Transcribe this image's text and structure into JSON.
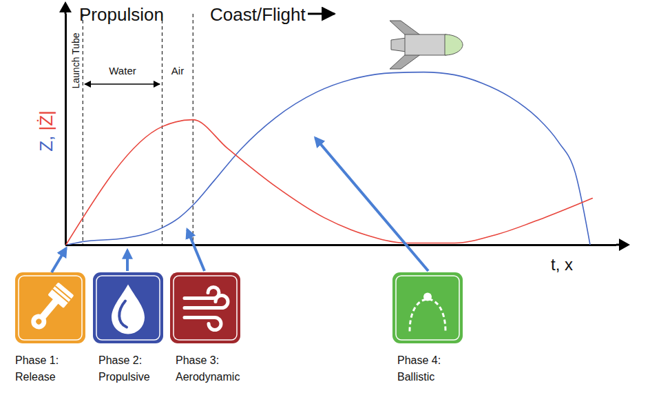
{
  "chart_data": {
    "type": "line",
    "annotations": {
      "propulsion": "Propulsion",
      "coast": "Coast/Flight",
      "launch_tube": "Launch Tube",
      "water": "Water",
      "air": "Air"
    },
    "xlabel": "t, x",
    "ylabel": "Z, |Ż|",
    "xlim": [
      0,
      100
    ],
    "ylim": [
      0,
      100
    ],
    "tick_labels": false,
    "phase_boundaries": [
      3.1,
      17.5,
      23.1
    ],
    "series": [
      {
        "name": "Z",
        "color": "#4466c4",
        "x": [
          0,
          3.1,
          10.6,
          17.5,
          20.6,
          23.1,
          26.9,
          31.9,
          38.1,
          45.6,
          53.1,
          59.4,
          65,
          70.6,
          75.6,
          80.6,
          85.6,
          89.4,
          92.5,
          95.2
        ],
        "values": [
          0,
          1.5,
          3,
          7.5,
          11.9,
          17.3,
          27.8,
          41.8,
          55.2,
          66.3,
          72.5,
          74.6,
          74.9,
          73.7,
          70.1,
          64.2,
          55.2,
          44.8,
          31.3,
          0
        ]
      },
      {
        "name": "|Ż|",
        "color": "#e8453c",
        "x": [
          0,
          17.5,
          23.1,
          29.4,
          38.1,
          46.9,
          54.4,
          61.9,
          70.6,
          78.1,
          86.9,
          95.6
        ],
        "values": [
          0,
          51.3,
          54.3,
          41.8,
          25.4,
          11.9,
          4.5,
          0.9,
          0.9,
          4.5,
          11.9,
          20.3
        ]
      }
    ],
    "phases": [
      {
        "label": "Phase 1:",
        "name": "Release",
        "color": "#f0a02c"
      },
      {
        "label": "Phase 2:",
        "name": "Propulsive",
        "color": "#3b4fa8"
      },
      {
        "label": "Phase 3:",
        "name": "Aerodynamic",
        "color": "#a0282c"
      },
      {
        "label": "Phase 4:",
        "name": "Ballistic",
        "color": "#5cb848"
      }
    ]
  }
}
